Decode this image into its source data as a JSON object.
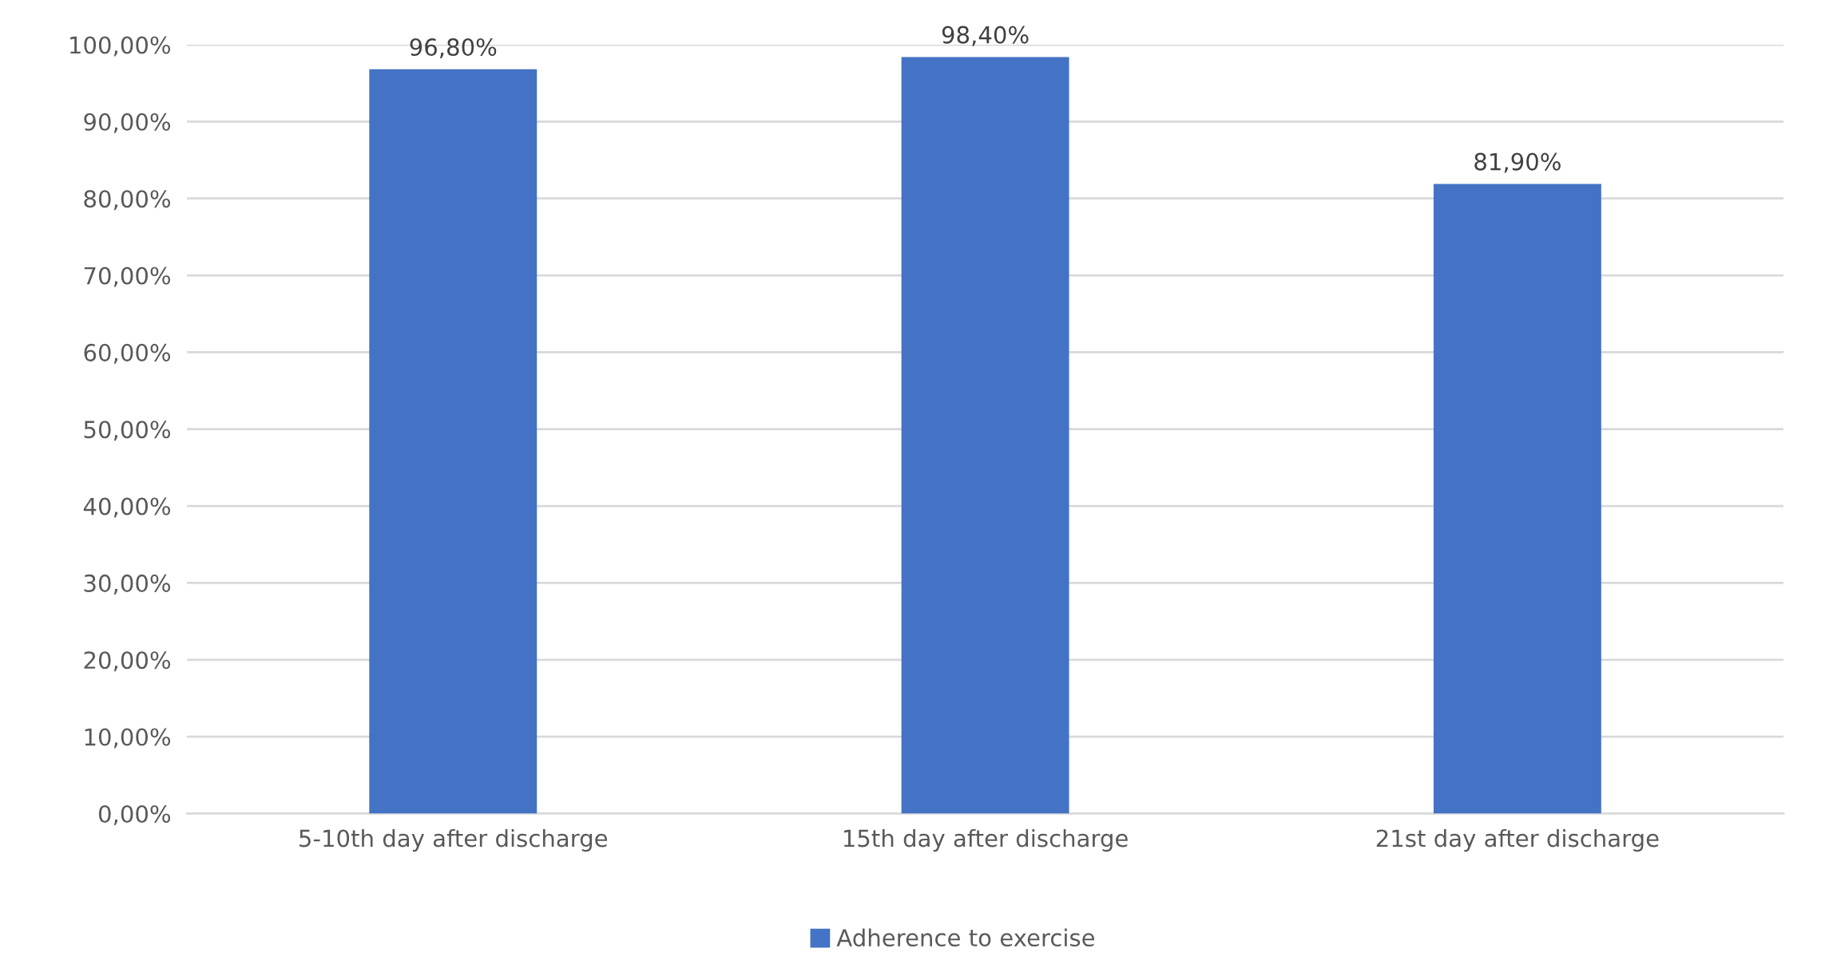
{
  "chart_data": {
    "type": "bar",
    "categories": [
      "5-10th day after discharge",
      "15th day after discharge",
      "21st day after discharge"
    ],
    "series": [
      {
        "name": "Adherence to exercise",
        "color": "#4472c4",
        "values": [
          96.8,
          98.4,
          81.9
        ],
        "value_labels": [
          "96,80%",
          "98,40%",
          "81,90%"
        ]
      }
    ],
    "ylim": [
      0,
      100
    ],
    "yticks": [
      {
        "value": 0,
        "label": "0,00%"
      },
      {
        "value": 10,
        "label": "10,00%"
      },
      {
        "value": 20,
        "label": "20,00%"
      },
      {
        "value": 30,
        "label": "30,00%"
      },
      {
        "value": 40,
        "label": "40,00%"
      },
      {
        "value": 50,
        "label": "50,00%"
      },
      {
        "value": 60,
        "label": "60,00%"
      },
      {
        "value": 70,
        "label": "70,00%"
      },
      {
        "value": 80,
        "label": "80,00%"
      },
      {
        "value": 90,
        "label": "90,00%"
      },
      {
        "value": 100,
        "label": "100,00%"
      }
    ],
    "grid": "y",
    "legend": "bottom"
  }
}
